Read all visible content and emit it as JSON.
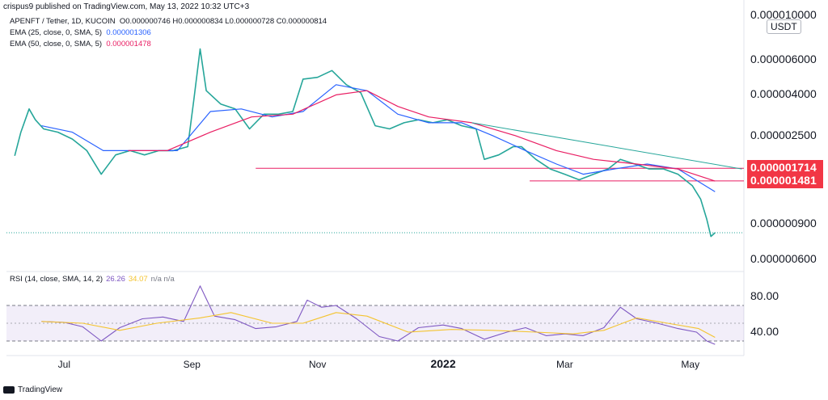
{
  "header": {
    "credit": "crispus9 published on TradingView.com, May 13, 2022 10:32 UTC+3"
  },
  "legend": {
    "symbol": "APENFT / Tether, 1D, KUCOIN",
    "ohlc": "O0.000000746 H0.000000834 L0.000000728 C0.000000814",
    "ema25_label": "EMA (25, close, 0, SMA, 5)",
    "ema25_value": "0.000001306",
    "ema50_label": "EMA (50, close, 0, SMA, 5)",
    "ema50_value": "0.000001478"
  },
  "rsi_legend": {
    "label": "RSI (14, close, SMA, 14, 2)",
    "rsi": "26.26",
    "sma": "34.07",
    "na": "n/a n/a"
  },
  "footer": {
    "brand": "TradingView"
  },
  "colors": {
    "candle_up": "#26a69a",
    "candle_down": "#ef5350",
    "ema25": "#2962ff",
    "ema50": "#e91e63",
    "trend": "#26a69a",
    "level": "#e91e63",
    "rsi": "#7e57c2",
    "rsi_sma": "#f4c430",
    "badge": "#f23645"
  },
  "chart_data": [
    {
      "type": "line",
      "scale": "log",
      "unit": "USDT",
      "x_ticks": [
        {
          "label": "Jul",
          "date": "2021-07-01",
          "bold": false
        },
        {
          "label": "Sep",
          "date": "2021-09-01",
          "bold": false
        },
        {
          "label": "Nov",
          "date": "2021-11-01",
          "bold": false
        },
        {
          "label": "2022",
          "date": "2022-01-01",
          "bold": true
        },
        {
          "label": "Mar",
          "date": "2022-03-01",
          "bold": false
        },
        {
          "label": "May",
          "date": "2022-05-01",
          "bold": false
        }
      ],
      "y_ticks": [
        "0.000000600",
        "0.000000900",
        "0.000002500",
        "0.000004000",
        "0.000006000",
        "0.000010000"
      ],
      "x_range": [
        "2021-06-03",
        "2022-05-27"
      ],
      "y_range": [
        5.5e-07,
        1.05e-05
      ],
      "series": [
        {
          "role": "price",
          "points": [
            [
              "2021-06-07",
              1.98e-06
            ],
            [
              "2021-06-10",
              2.6e-06
            ],
            [
              "2021-06-14",
              3.4e-06
            ],
            [
              "2021-06-17",
              3e-06
            ],
            [
              "2021-06-21",
              2.7e-06
            ],
            [
              "2021-06-28",
              2.6e-06
            ],
            [
              "2021-07-05",
              2.4e-06
            ],
            [
              "2021-07-12",
              2.1e-06
            ],
            [
              "2021-07-19",
              1.6e-06
            ],
            [
              "2021-07-26",
              2e-06
            ],
            [
              "2021-08-02",
              2.1e-06
            ],
            [
              "2021-08-09",
              2e-06
            ],
            [
              "2021-08-16",
              2.1e-06
            ],
            [
              "2021-08-23",
              2.1e-06
            ],
            [
              "2021-08-30",
              2.2e-06
            ],
            [
              "2021-09-02",
              3.8e-06
            ],
            [
              "2021-09-05",
              6.8e-06
            ],
            [
              "2021-09-08",
              4.2e-06
            ],
            [
              "2021-09-15",
              3.6e-06
            ],
            [
              "2021-09-22",
              3.4e-06
            ],
            [
              "2021-09-29",
              2.7e-06
            ],
            [
              "2021-10-06",
              3.2e-06
            ],
            [
              "2021-10-13",
              3.2e-06
            ],
            [
              "2021-10-20",
              3.3e-06
            ],
            [
              "2021-10-25",
              4.8e-06
            ],
            [
              "2021-11-01",
              4.9e-06
            ],
            [
              "2021-11-08",
              5.3e-06
            ],
            [
              "2021-11-15",
              4.5e-06
            ],
            [
              "2021-11-22",
              4.1e-06
            ],
            [
              "2021-11-29",
              2.8e-06
            ],
            [
              "2021-12-06",
              2.7e-06
            ],
            [
              "2021-12-13",
              2.9e-06
            ],
            [
              "2021-12-20",
              3e-06
            ],
            [
              "2021-12-27",
              2.9e-06
            ],
            [
              "2022-01-03",
              3e-06
            ],
            [
              "2022-01-10",
              2.8e-06
            ],
            [
              "2022-01-17",
              2.7e-06
            ],
            [
              "2022-01-21",
              1.9e-06
            ],
            [
              "2022-01-28",
              2e-06
            ],
            [
              "2022-02-04",
              2.2e-06
            ],
            [
              "2022-02-08",
              2.2e-06
            ],
            [
              "2022-02-15",
              1.9e-06
            ],
            [
              "2022-02-22",
              1.7e-06
            ],
            [
              "2022-03-01",
              1.6e-06
            ],
            [
              "2022-03-08",
              1.5e-06
            ],
            [
              "2022-03-15",
              1.6e-06
            ],
            [
              "2022-03-22",
              1.7e-06
            ],
            [
              "2022-03-28",
              1.9e-06
            ],
            [
              "2022-04-04",
              1.8e-06
            ],
            [
              "2022-04-11",
              1.7e-06
            ],
            [
              "2022-04-18",
              1.7e-06
            ],
            [
              "2022-04-25",
              1.6e-06
            ],
            [
              "2022-05-02",
              1.4e-06
            ],
            [
              "2022-05-06",
              1.2e-06
            ],
            [
              "2022-05-09",
              9.5e-07
            ],
            [
              "2022-05-11",
              7.8e-07
            ],
            [
              "2022-05-13",
              8.14e-07
            ]
          ]
        },
        {
          "role": "ema25",
          "points": [
            [
              "2021-06-20",
              2.8e-06
            ],
            [
              "2021-07-05",
              2.6e-06
            ],
            [
              "2021-07-20",
              2.1e-06
            ],
            [
              "2021-08-05",
              2.1e-06
            ],
            [
              "2021-08-25",
              2.1e-06
            ],
            [
              "2021-09-10",
              3.3e-06
            ],
            [
              "2021-09-25",
              3.4e-06
            ],
            [
              "2021-10-10",
              3.1e-06
            ],
            [
              "2021-10-25",
              3.3e-06
            ],
            [
              "2021-11-10",
              4.5e-06
            ],
            [
              "2021-11-25",
              4.2e-06
            ],
            [
              "2021-12-10",
              3.2e-06
            ],
            [
              "2021-12-25",
              2.9e-06
            ],
            [
              "2022-01-10",
              2.9e-06
            ],
            [
              "2022-01-25",
              2.5e-06
            ],
            [
              "2022-02-10",
              2.1e-06
            ],
            [
              "2022-02-25",
              1.8e-06
            ],
            [
              "2022-03-10",
              1.6e-06
            ],
            [
              "2022-03-25",
              1.7e-06
            ],
            [
              "2022-04-10",
              1.8e-06
            ],
            [
              "2022-04-25",
              1.7e-06
            ],
            [
              "2022-05-13",
              1.306e-06
            ]
          ]
        },
        {
          "role": "ema50",
          "points": [
            [
              "2021-08-01",
              2.1e-06
            ],
            [
              "2021-08-20",
              2.1e-06
            ],
            [
              "2021-09-10",
              2.6e-06
            ],
            [
              "2021-09-30",
              3.1e-06
            ],
            [
              "2021-10-20",
              3.2e-06
            ],
            [
              "2021-11-10",
              4e-06
            ],
            [
              "2021-11-25",
              4.2e-06
            ],
            [
              "2021-12-10",
              3.5e-06
            ],
            [
              "2021-12-25",
              3.1e-06
            ],
            [
              "2022-01-15",
              2.9e-06
            ],
            [
              "2022-02-05",
              2.5e-06
            ],
            [
              "2022-02-25",
              2.1e-06
            ],
            [
              "2022-03-15",
              1.9e-06
            ],
            [
              "2022-04-05",
              1.8e-06
            ],
            [
              "2022-04-25",
              1.7e-06
            ],
            [
              "2022-05-13",
              1.478e-06
            ]
          ]
        },
        {
          "role": "trendline",
          "points": [
            [
              "2022-01-15",
              2.9e-06
            ],
            [
              "2022-05-26",
              1.7e-06
            ]
          ]
        },
        {
          "role": "level",
          "value": 1.714e-06,
          "from": "2021-10-02"
        },
        {
          "role": "level",
          "value": 1.481e-06,
          "from": "2022-02-12"
        },
        {
          "role": "last",
          "value": 8.14e-07
        }
      ],
      "badges": [
        "0.000001714",
        "0.000001481"
      ]
    },
    {
      "type": "line",
      "y_ticks": [
        "80.00",
        "40.00"
      ],
      "y_range": [
        20,
        100
      ],
      "bands": [
        70,
        30
      ],
      "series": [
        {
          "role": "rsi",
          "points": [
            [
              "2021-06-20",
              52
            ],
            [
              "2021-07-01",
              51
            ],
            [
              "2021-07-10",
              46
            ],
            [
              "2021-07-19",
              30
            ],
            [
              "2021-07-28",
              45
            ],
            [
              "2021-08-08",
              55
            ],
            [
              "2021-08-18",
              57
            ],
            [
              "2021-08-28",
              52
            ],
            [
              "2021-09-05",
              92
            ],
            [
              "2021-09-12",
              58
            ],
            [
              "2021-09-22",
              54
            ],
            [
              "2021-10-02",
              44
            ],
            [
              "2021-10-12",
              46
            ],
            [
              "2021-10-22",
              52
            ],
            [
              "2021-10-27",
              76
            ],
            [
              "2021-11-03",
              68
            ],
            [
              "2021-11-10",
              70
            ],
            [
              "2021-11-20",
              55
            ],
            [
              "2021-12-01",
              35
            ],
            [
              "2021-12-10",
              30
            ],
            [
              "2021-12-20",
              45
            ],
            [
              "2022-01-01",
              48
            ],
            [
              "2022-01-10",
              44
            ],
            [
              "2022-01-21",
              32
            ],
            [
              "2022-02-01",
              40
            ],
            [
              "2022-02-10",
              45
            ],
            [
              "2022-02-20",
              36
            ],
            [
              "2022-03-01",
              38
            ],
            [
              "2022-03-10",
              36
            ],
            [
              "2022-03-20",
              45
            ],
            [
              "2022-03-28",
              68
            ],
            [
              "2022-04-05",
              55
            ],
            [
              "2022-04-15",
              50
            ],
            [
              "2022-04-25",
              44
            ],
            [
              "2022-05-04",
              40
            ],
            [
              "2022-05-09",
              30
            ],
            [
              "2022-05-13",
              26.26
            ]
          ]
        },
        {
          "role": "rsi_sma",
          "points": [
            [
              "2021-06-20",
              52
            ],
            [
              "2021-07-10",
              50
            ],
            [
              "2021-07-28",
              42
            ],
            [
              "2021-08-15",
              50
            ],
            [
              "2021-09-05",
              56
            ],
            [
              "2021-09-20",
              62
            ],
            [
              "2021-10-10",
              50
            ],
            [
              "2021-10-25",
              50
            ],
            [
              "2021-11-10",
              62
            ],
            [
              "2021-11-25",
              58
            ],
            [
              "2021-12-15",
              40
            ],
            [
              "2022-01-05",
              43
            ],
            [
              "2022-01-25",
              42
            ],
            [
              "2022-02-15",
              40
            ],
            [
              "2022-03-05",
              38
            ],
            [
              "2022-03-20",
              42
            ],
            [
              "2022-04-05",
              56
            ],
            [
              "2022-04-20",
              50
            ],
            [
              "2022-05-05",
              44
            ],
            [
              "2022-05-13",
              34.07
            ]
          ]
        }
      ]
    }
  ]
}
